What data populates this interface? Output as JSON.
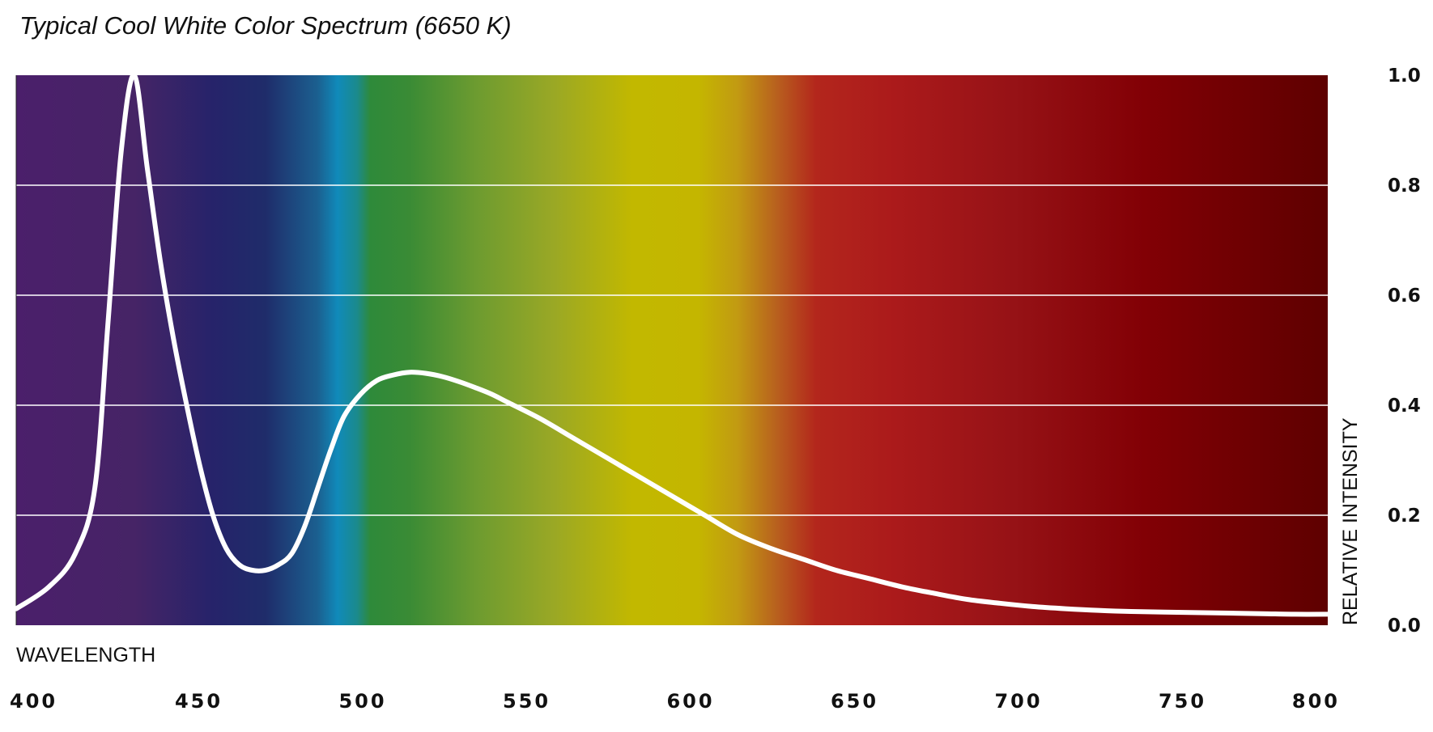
{
  "chart_data": {
    "type": "line",
    "title": "Typical Cool White Color Spectrum (6650 K)",
    "xlabel": "WAVELENGTH",
    "ylabel": "RELATIVE INTENSITY",
    "xlim": [
      400,
      800
    ],
    "ylim": [
      0,
      1.0
    ],
    "x_ticks": [
      "400",
      "450",
      "500",
      "550",
      "600",
      "650",
      "700",
      "750",
      "800"
    ],
    "y_ticks": [
      "0.0",
      "0.2",
      "0.4",
      "0.6",
      "0.8",
      "1.0"
    ],
    "grid": "horizontal",
    "y_axis_position": "right",
    "background": "visible light spectrum gradient",
    "line_color": "#ffffff",
    "series": [
      {
        "x": [
          400,
          410,
          418,
          424,
          428,
          432,
          436,
          440,
          444,
          448,
          452,
          456,
          460,
          464,
          468,
          472,
          476,
          480,
          484,
          488,
          492,
          496,
          500,
          505,
          510,
          515,
          520,
          525,
          530,
          535,
          540,
          545,
          550,
          560,
          570,
          580,
          590,
          600,
          610,
          620,
          630,
          640,
          650,
          660,
          670,
          680,
          690,
          700,
          710,
          720,
          730,
          740,
          750,
          760,
          770,
          780,
          790,
          800
        ],
        "y": [
          0.03,
          0.07,
          0.13,
          0.25,
          0.55,
          0.86,
          1.0,
          0.83,
          0.66,
          0.52,
          0.4,
          0.29,
          0.2,
          0.14,
          0.11,
          0.1,
          0.1,
          0.11,
          0.13,
          0.18,
          0.25,
          0.32,
          0.38,
          0.42,
          0.445,
          0.455,
          0.46,
          0.458,
          0.452,
          0.443,
          0.432,
          0.42,
          0.405,
          0.375,
          0.34,
          0.305,
          0.27,
          0.235,
          0.2,
          0.165,
          0.14,
          0.12,
          0.1,
          0.085,
          0.07,
          0.058,
          0.047,
          0.04,
          0.034,
          0.03,
          0.027,
          0.025,
          0.024,
          0.023,
          0.022,
          0.021,
          0.02,
          0.02
        ]
      }
    ]
  }
}
